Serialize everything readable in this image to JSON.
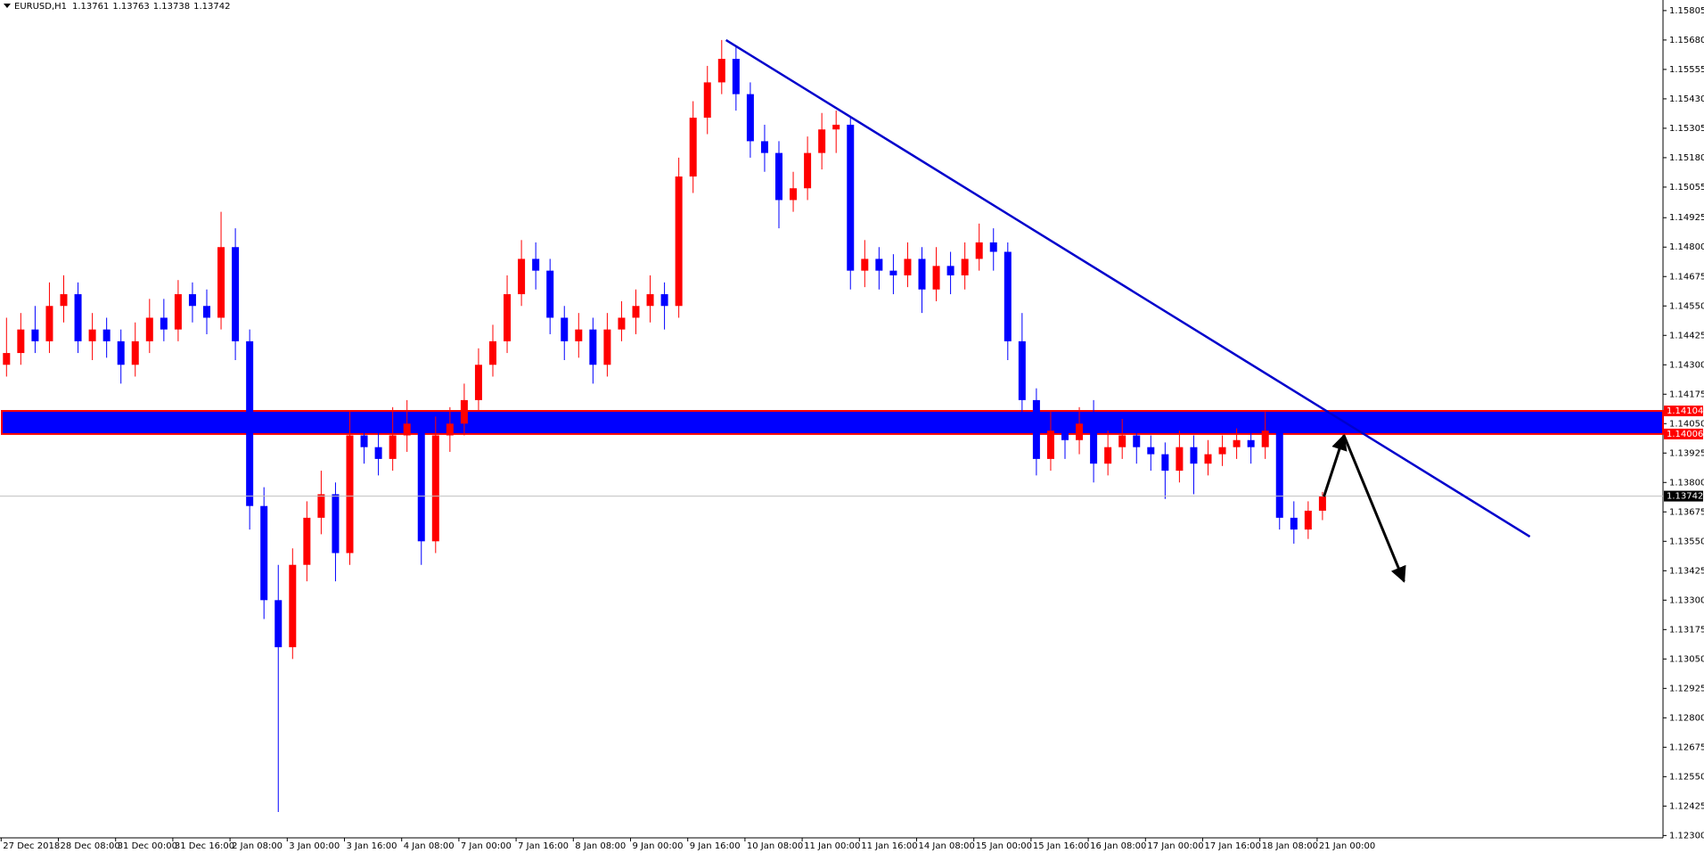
{
  "chart_data": {
    "type": "candlestick",
    "symbol": "EURUSD,H1",
    "quote": [
      1.13761,
      1.13763,
      1.13738,
      1.13742
    ],
    "up_color": "#ff0000",
    "down_color": "#0000ff",
    "ylim": [
      1.1229,
      1.1585
    ],
    "yticks": [
      1.15805,
      {
        "value": 1.1568,
        "label": "1.15680"
      },
      1.15555,
      {
        "value": 1.1543,
        "label": "1.15430"
      },
      1.15305,
      {
        "value": 1.1518,
        "label": "1.15180"
      },
      1.15055,
      1.14925,
      {
        "value": 1.148,
        "label": "1.14800"
      },
      1.14675,
      {
        "value": 1.1455,
        "label": "1.14550"
      },
      1.14425,
      {
        "value": 1.143,
        "label": "1.14300"
      },
      1.14175,
      {
        "value": 1.1405,
        "label": "1.14050"
      },
      1.13925,
      {
        "value": 1.138,
        "label": "1.13800"
      },
      1.13675,
      {
        "value": 1.1355,
        "label": "1.13550"
      },
      1.13425,
      {
        "value": 1.133,
        "label": "1.13300"
      },
      1.13175,
      {
        "value": 1.1305,
        "label": "1.13050"
      },
      1.12925,
      {
        "value": 1.128,
        "label": "1.12800"
      },
      1.12675,
      {
        "value": 1.1255,
        "label": "1.12550"
      },
      1.12425,
      {
        "value": 1.123,
        "label": "1.12300"
      }
    ],
    "x_labels": [
      "27 Dec 2018",
      "28 Dec 08:00",
      "31 Dec 00:00",
      "31 Dec 16:00",
      "2 Jan 08:00",
      "3 Jan 00:00",
      "3 Jan 16:00",
      "4 Jan 08:00",
      "7 Jan 00:00",
      "7 Jan 16:00",
      "8 Jan 08:00",
      "9 Jan 00:00",
      "9 Jan 16:00",
      "10 Jan 08:00",
      "11 Jan 00:00",
      "11 Jan 16:00",
      "14 Jan 08:00",
      "15 Jan 00:00",
      "15 Jan 16:00",
      "16 Jan 08:00",
      "17 Jan 00:00",
      "17 Jan 16:00",
      "18 Jan 08:00",
      "21 Jan 00:00"
    ],
    "candles": [
      [
        1.143,
        1.145,
        1.1425,
        1.1435
      ],
      [
        1.1435,
        1.1452,
        1.143,
        1.1445
      ],
      [
        1.1445,
        1.1455,
        1.1435,
        1.144
      ],
      [
        1.144,
        1.1465,
        1.1435,
        1.1455
      ],
      [
        1.1455,
        1.1468,
        1.1448,
        1.146
      ],
      [
        1.146,
        1.1465,
        1.1435,
        1.144
      ],
      [
        1.144,
        1.1452,
        1.1432,
        1.1445
      ],
      [
        1.1445,
        1.145,
        1.1433,
        1.144
      ],
      [
        1.144,
        1.1445,
        1.1422,
        1.143
      ],
      [
        1.143,
        1.1448,
        1.1425,
        1.144
      ],
      [
        1.144,
        1.1458,
        1.1435,
        1.145
      ],
      [
        1.145,
        1.1458,
        1.144,
        1.1445
      ],
      [
        1.1445,
        1.1466,
        1.144,
        1.146
      ],
      [
        1.146,
        1.1465,
        1.1448,
        1.1455
      ],
      [
        1.1455,
        1.1462,
        1.1443,
        1.145
      ],
      [
        1.145,
        1.1495,
        1.1445,
        1.148
      ],
      [
        1.148,
        1.1488,
        1.1432,
        1.144
      ],
      [
        1.144,
        1.1445,
        1.136,
        1.137
      ],
      [
        1.137,
        1.1378,
        1.1322,
        1.133
      ],
      [
        1.133,
        1.1345,
        1.124,
        1.131
      ],
      [
        1.131,
        1.1352,
        1.1305,
        1.1345
      ],
      [
        1.1345,
        1.1372,
        1.1338,
        1.1365
      ],
      [
        1.1365,
        1.1385,
        1.1358,
        1.1375
      ],
      [
        1.1375,
        1.138,
        1.1338,
        1.135
      ],
      [
        1.135,
        1.141,
        1.1345,
        1.14
      ],
      [
        1.14,
        1.1408,
        1.1388,
        1.1395
      ],
      [
        1.1395,
        1.1403,
        1.1383,
        1.139
      ],
      [
        1.139,
        1.1412,
        1.1385,
        1.14
      ],
      [
        1.14,
        1.1415,
        1.1393,
        1.1405
      ],
      [
        1.1405,
        1.141,
        1.1345,
        1.1355
      ],
      [
        1.1355,
        1.1408,
        1.135,
        1.14
      ],
      [
        1.14,
        1.1412,
        1.1393,
        1.1405
      ],
      [
        1.1405,
        1.1422,
        1.14,
        1.1415
      ],
      [
        1.1415,
        1.1437,
        1.141,
        1.143
      ],
      [
        1.143,
        1.1447,
        1.1425,
        1.144
      ],
      [
        1.144,
        1.1468,
        1.1435,
        1.146
      ],
      [
        1.146,
        1.1483,
        1.1455,
        1.1475
      ],
      [
        1.1475,
        1.1482,
        1.1462,
        1.147
      ],
      [
        1.147,
        1.1475,
        1.1443,
        1.145
      ],
      [
        1.145,
        1.1455,
        1.1432,
        1.144
      ],
      [
        1.144,
        1.1452,
        1.1433,
        1.1445
      ],
      [
        1.1445,
        1.145,
        1.1422,
        1.143
      ],
      [
        1.143,
        1.1452,
        1.1425,
        1.1445
      ],
      [
        1.1445,
        1.1457,
        1.144,
        1.145
      ],
      [
        1.145,
        1.1462,
        1.1443,
        1.1455
      ],
      [
        1.1455,
        1.1468,
        1.1448,
        1.146
      ],
      [
        1.146,
        1.1465,
        1.1445,
        1.1455
      ],
      [
        1.1455,
        1.1518,
        1.145,
        1.151
      ],
      [
        1.151,
        1.1542,
        1.1503,
        1.1535
      ],
      [
        1.1535,
        1.1557,
        1.1528,
        1.155
      ],
      [
        1.155,
        1.1568,
        1.1545,
        1.156
      ],
      [
        1.156,
        1.1565,
        1.1538,
        1.1545
      ],
      [
        1.1545,
        1.155,
        1.1518,
        1.1525
      ],
      [
        1.1525,
        1.1532,
        1.1512,
        1.152
      ],
      [
        1.152,
        1.1525,
        1.1488,
        1.15
      ],
      [
        1.15,
        1.1512,
        1.1495,
        1.1505
      ],
      [
        1.1505,
        1.1527,
        1.15,
        1.152
      ],
      [
        1.152,
        1.1537,
        1.1513,
        1.153
      ],
      [
        1.153,
        1.1538,
        1.152,
        1.1532
      ],
      [
        1.1532,
        1.1535,
        1.1462,
        1.147
      ],
      [
        1.147,
        1.1483,
        1.1463,
        1.1475
      ],
      [
        1.1475,
        1.148,
        1.1462,
        1.147
      ],
      [
        1.147,
        1.1477,
        1.146,
        1.1468
      ],
      [
        1.1468,
        1.1482,
        1.1463,
        1.1475
      ],
      [
        1.1475,
        1.148,
        1.1452,
        1.1462
      ],
      [
        1.1462,
        1.148,
        1.1457,
        1.1472
      ],
      [
        1.1472,
        1.1478,
        1.146,
        1.1468
      ],
      [
        1.1468,
        1.1482,
        1.1462,
        1.1475
      ],
      [
        1.1475,
        1.149,
        1.147,
        1.1482
      ],
      [
        1.1482,
        1.1488,
        1.147,
        1.1478
      ],
      [
        1.1478,
        1.1482,
        1.1432,
        1.144
      ],
      [
        1.144,
        1.1452,
        1.1408,
        1.1415
      ],
      [
        1.1415,
        1.142,
        1.1383,
        1.139
      ],
      [
        1.139,
        1.141,
        1.1385,
        1.1402
      ],
      [
        1.1402,
        1.1408,
        1.139,
        1.1398
      ],
      [
        1.1398,
        1.1412,
        1.1392,
        1.1405
      ],
      [
        1.1405,
        1.1415,
        1.138,
        1.1388
      ],
      [
        1.1388,
        1.1402,
        1.1383,
        1.1395
      ],
      [
        1.1395,
        1.1407,
        1.139,
        1.14
      ],
      [
        1.14,
        1.1405,
        1.1388,
        1.1395
      ],
      [
        1.1395,
        1.14,
        1.1385,
        1.1392
      ],
      [
        1.1392,
        1.1397,
        1.1373,
        1.1385
      ],
      [
        1.1385,
        1.1402,
        1.138,
        1.1395
      ],
      [
        1.1395,
        1.14,
        1.1375,
        1.1388
      ],
      [
        1.1388,
        1.1398,
        1.1383,
        1.1392
      ],
      [
        1.1392,
        1.14,
        1.1387,
        1.1395
      ],
      [
        1.1395,
        1.1403,
        1.139,
        1.1398
      ],
      [
        1.1398,
        1.1402,
        1.1388,
        1.1395
      ],
      [
        1.1395,
        1.141,
        1.139,
        1.1402
      ],
      [
        1.1402,
        1.1405,
        1.136,
        1.1365
      ],
      [
        1.1365,
        1.1372,
        1.1354,
        1.136
      ],
      [
        1.136,
        1.1372,
        1.1356,
        1.1368
      ],
      [
        1.1368,
        1.1376,
        1.1364,
        1.13742
      ]
    ],
    "zone": [
      1.14006,
      1.14104
    ],
    "zone_color": "#0000ff",
    "current_price": 1.13742,
    "trendline": {
      "x": [
        50.3,
        106.5
      ],
      "y": [
        1.1568,
        1.1357
      ],
      "color": "#0000cc"
    },
    "arrow": {
      "x": [
        92.1,
        93.5,
        97.7
      ],
      "y": [
        1.1374,
        1.14,
        1.1338
      ],
      "color": "#000000"
    }
  }
}
